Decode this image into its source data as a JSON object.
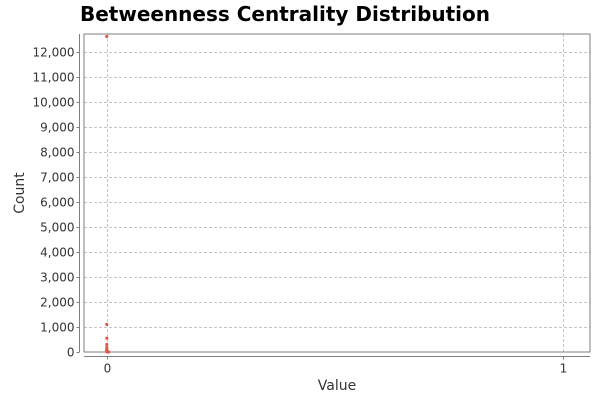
{
  "chart_data": {
    "type": "scatter",
    "title": "Betweenness Centrality Distribution",
    "xlabel": "Value",
    "ylabel": "Count",
    "xlim": [
      -0.05,
      1.06
    ],
    "ylim": [
      0,
      12700
    ],
    "x_ticks": [
      {
        "value": 0,
        "label": "0"
      },
      {
        "value": 1,
        "label": "1"
      }
    ],
    "y_ticks": [
      {
        "value": 0,
        "label": "0"
      },
      {
        "value": 1000,
        "label": "1,000"
      },
      {
        "value": 2000,
        "label": "2,000"
      },
      {
        "value": 3000,
        "label": "3,000"
      },
      {
        "value": 4000,
        "label": "4,000"
      },
      {
        "value": 5000,
        "label": "5,000"
      },
      {
        "value": 6000,
        "label": "6,000"
      },
      {
        "value": 7000,
        "label": "7,000"
      },
      {
        "value": 8000,
        "label": "8,000"
      },
      {
        "value": 9000,
        "label": "9,000"
      },
      {
        "value": 10000,
        "label": "10,000"
      },
      {
        "value": 11000,
        "label": "11,000"
      },
      {
        "value": 12000,
        "label": "12,000"
      }
    ],
    "grid": true,
    "series": [
      {
        "color": "#e05a4a",
        "points": [
          {
            "x": 0,
            "y": 12600
          },
          {
            "x": 0,
            "y": 1100
          },
          {
            "x": 0,
            "y": 550
          },
          {
            "x": 0,
            "y": 300
          },
          {
            "x": 0,
            "y": 180
          },
          {
            "x": 0,
            "y": 110
          },
          {
            "x": 0,
            "y": 70
          },
          {
            "x": 0,
            "y": 40
          },
          {
            "x": 0,
            "y": 20
          },
          {
            "x": 0.001,
            "y": 10
          },
          {
            "x": 0.001,
            "y": 5
          },
          {
            "x": 0.002,
            "y": 3
          },
          {
            "x": 0.003,
            "y": 2
          },
          {
            "x": 0.004,
            "y": 1
          }
        ]
      }
    ],
    "colors": {
      "grid": "#c4c4c4",
      "axis": "#7f7f7f",
      "frame": "#7f7f7f"
    }
  }
}
